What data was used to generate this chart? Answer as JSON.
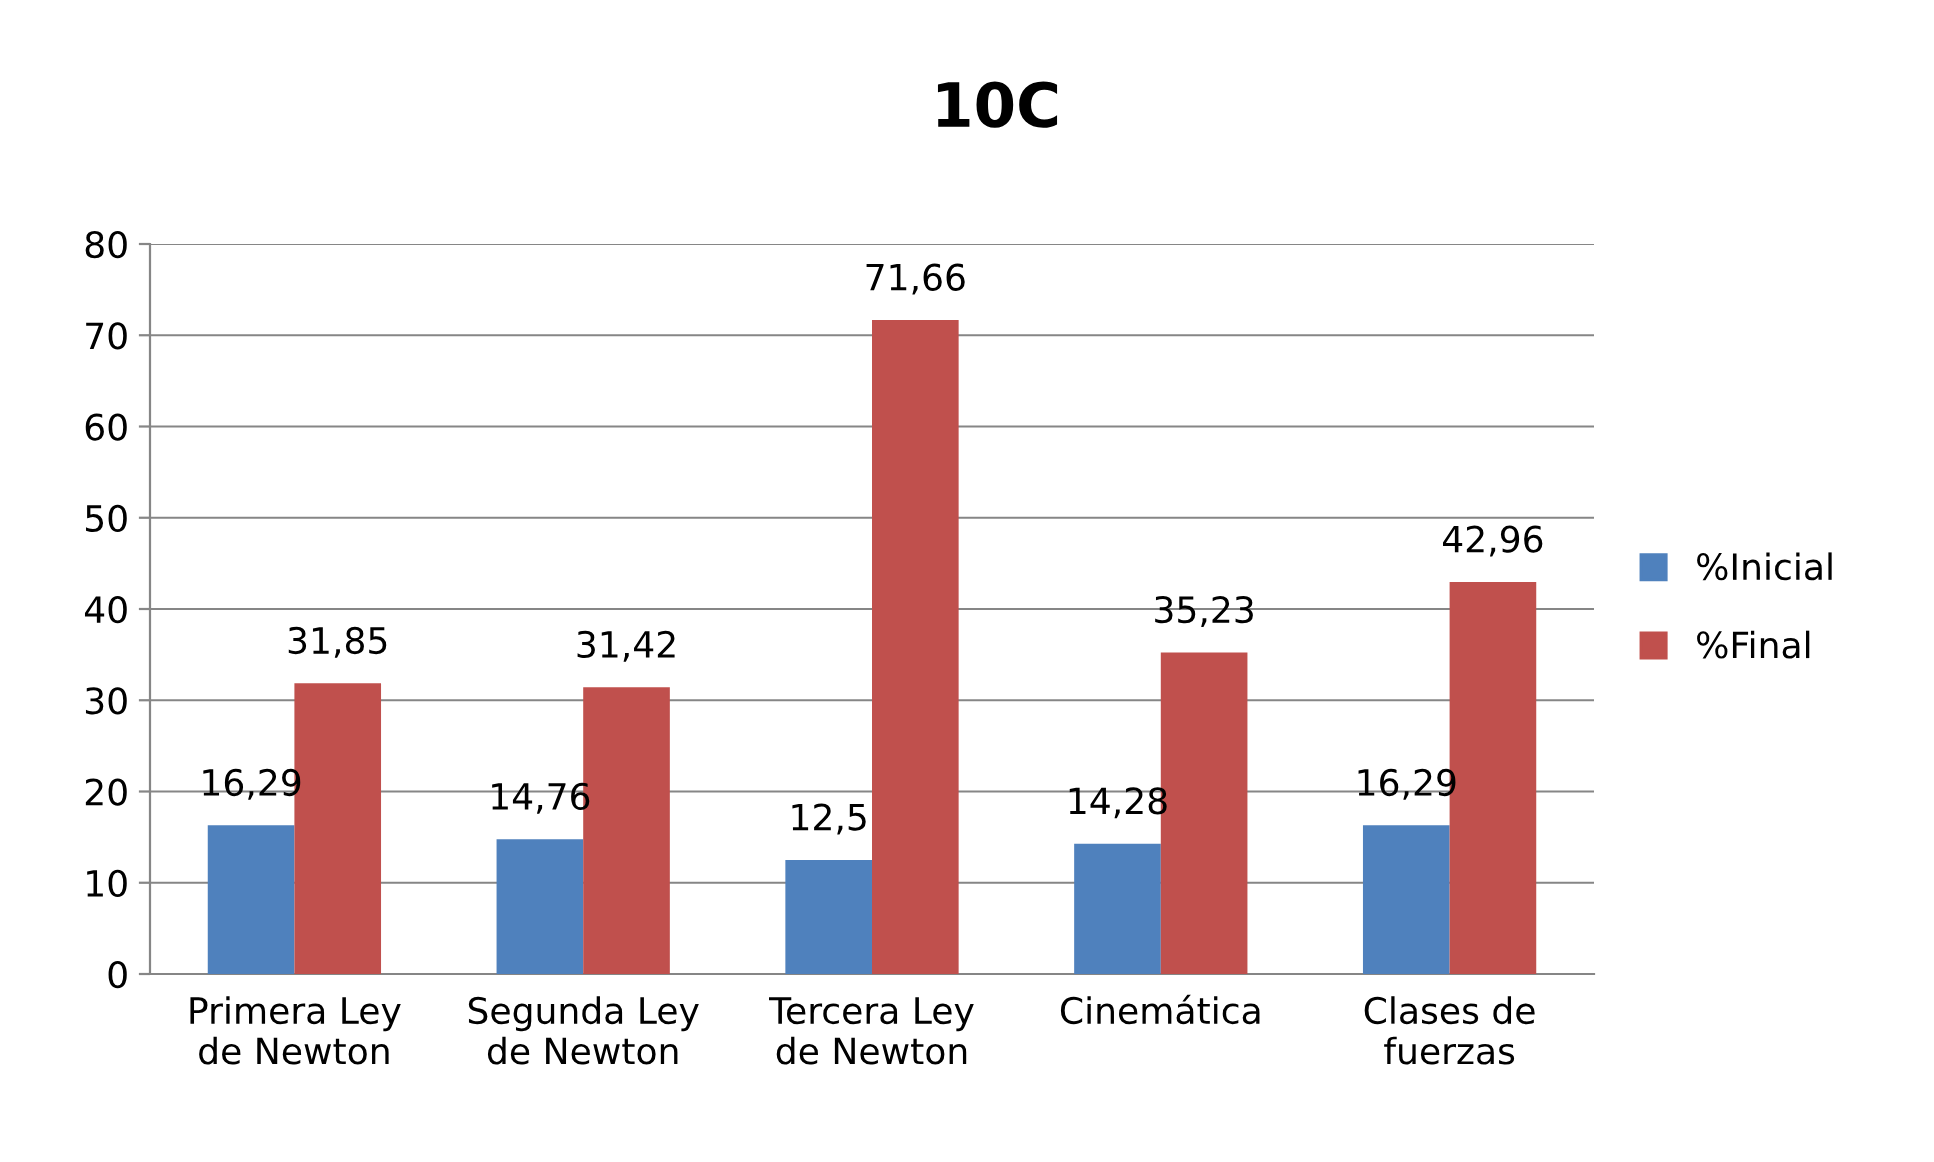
{
  "chart_data": {
    "type": "bar",
    "title": "10C",
    "categories": [
      "Primera Ley\nde Newton",
      "Segunda Ley\nde Newton",
      "Tercera Ley\nde Newton",
      "Cinemática",
      "Clases de\nfuerzas"
    ],
    "series": [
      {
        "name": "%Inicial",
        "color": "#4f81bd",
        "values": [
          16.29,
          14.76,
          12.5,
          14.28,
          16.29
        ],
        "value_labels": [
          "16,29",
          "14,76",
          "12,5",
          "14,28",
          "16,29"
        ]
      },
      {
        "name": "%Final",
        "color": "#c0504d",
        "values": [
          31.85,
          31.42,
          71.66,
          35.23,
          42.96
        ],
        "value_labels": [
          "31,85",
          "31,42",
          "71,66",
          "35,23",
          "42,96"
        ]
      }
    ],
    "ylim": [
      0,
      80
    ],
    "yticks": [
      0,
      10,
      20,
      30,
      40,
      50,
      60,
      70,
      80
    ],
    "grid": "y",
    "legend": "right"
  }
}
